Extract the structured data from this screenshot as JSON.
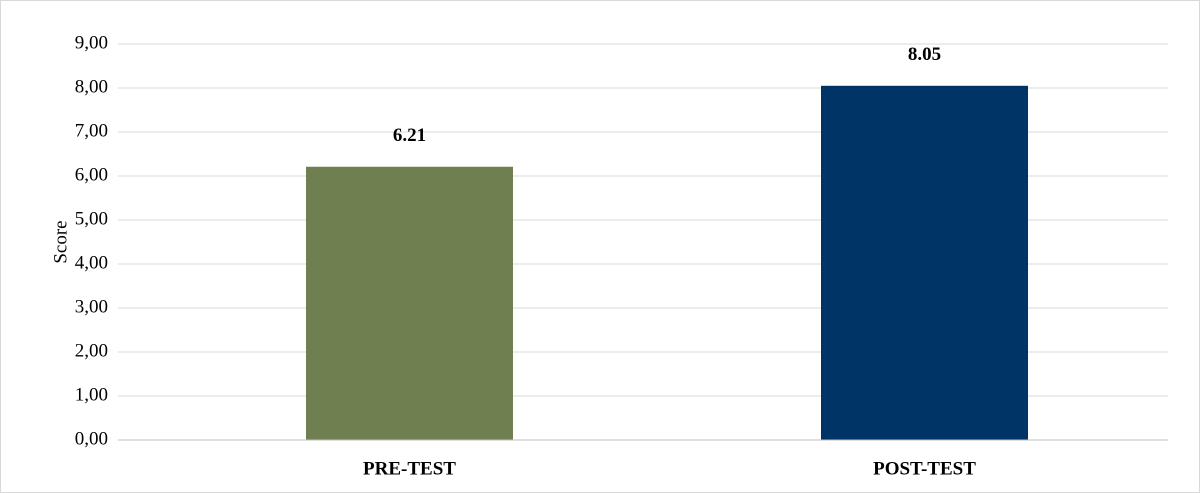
{
  "chart_data": {
    "type": "bar",
    "y_label": "Score",
    "categories": [
      "PRE-TEST",
      "POST-TEST"
    ],
    "values": [
      6.21,
      8.05
    ],
    "colors": [
      "#707f4f",
      "#003366"
    ],
    "ylim": [
      0,
      9
    ],
    "yticks": [
      {
        "value": 0,
        "label": "0,00"
      },
      {
        "value": 1,
        "label": "1,00"
      },
      {
        "value": 2,
        "label": "2,00"
      },
      {
        "value": 3,
        "label": "3,00"
      },
      {
        "value": 4,
        "label": "4,00"
      },
      {
        "value": 5,
        "label": "5,00"
      },
      {
        "value": 6,
        "label": "6,00"
      },
      {
        "value": 7,
        "label": "7,00"
      },
      {
        "value": 8,
        "label": "8,00"
      },
      {
        "value": 9,
        "label": "9,00"
      }
    ],
    "grid": true
  }
}
